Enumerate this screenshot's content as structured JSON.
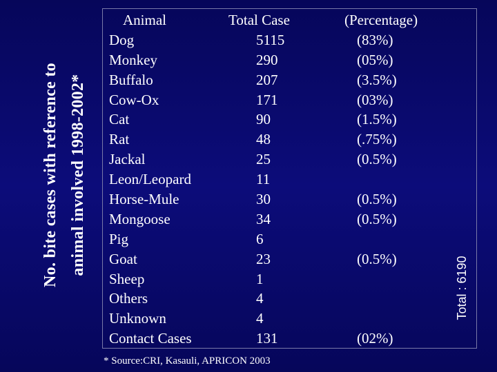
{
  "side_title": {
    "line1": "No.  bite cases with reference to",
    "line2": "animal involved 1998-2002*"
  },
  "table": {
    "headers": {
      "animal": "Animal",
      "total": "Total Case",
      "percentage": "(Percentage)"
    },
    "rows": [
      {
        "animal": "Dog",
        "total": "5115",
        "percentage": "(83%)"
      },
      {
        "animal": "Monkey",
        "total": "290",
        "percentage": "(05%)"
      },
      {
        "animal": "Buffalo",
        "total": "207",
        "percentage": "(3.5%)"
      },
      {
        "animal": "Cow-Ox",
        "total": "171",
        "percentage": "(03%)"
      },
      {
        "animal": "Cat",
        "total": "90",
        "percentage": "(1.5%)"
      },
      {
        "animal": "Rat",
        "total": "48",
        "percentage": "(.75%)"
      },
      {
        "animal": "Jackal",
        "total": "25",
        "percentage": "(0.5%)"
      },
      {
        "animal": "Leon/Leopard",
        "total": "11",
        "percentage": ""
      },
      {
        "animal": "Horse-Mule",
        "total": "30",
        "percentage": "(0.5%)"
      },
      {
        "animal": "Mongoose",
        "total": "34",
        "percentage": "(0.5%)"
      },
      {
        "animal": "Pig",
        "total": "6",
        "percentage": ""
      },
      {
        "animal": "Goat",
        "total": "23",
        "percentage": "(0.5%)"
      },
      {
        "animal": "Sheep",
        "total": "1",
        "percentage": ""
      },
      {
        "animal": "Others",
        "total": "4",
        "percentage": ""
      },
      {
        "animal": "Unknown",
        "total": "4",
        "percentage": ""
      },
      {
        "animal": "Contact Cases",
        "total": "131",
        "percentage": "(02%)"
      }
    ],
    "total_note": "Total : 6190"
  },
  "source": "* Source:CRI, Kasauli, APRICON 2003",
  "colors": {
    "background": "#0a0a6e",
    "text": "#ffffff"
  }
}
